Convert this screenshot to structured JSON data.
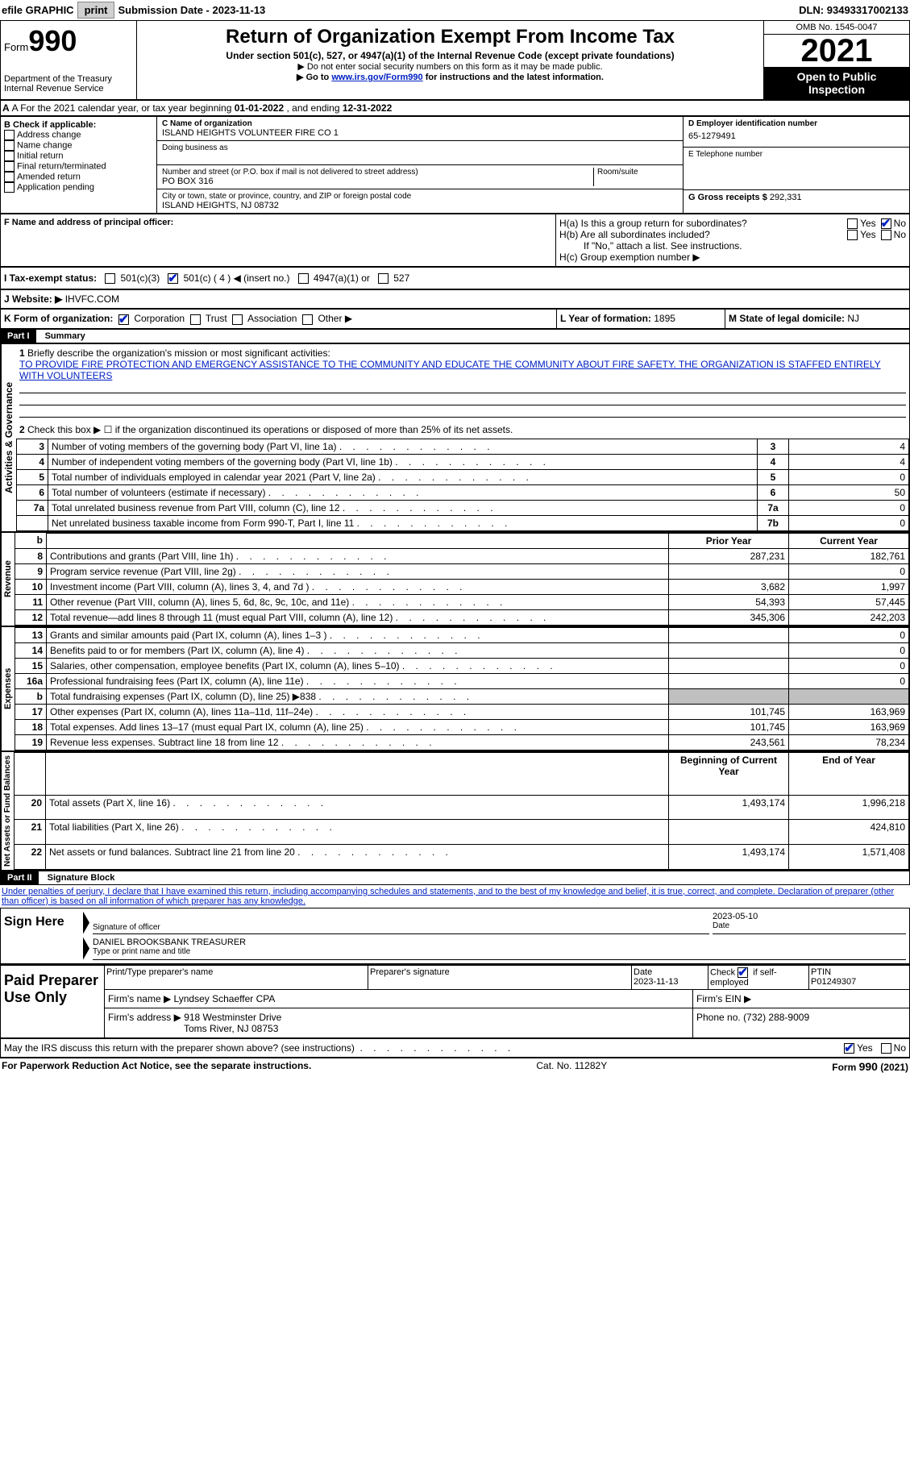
{
  "topbar": {
    "efile": "efile GRAPHIC",
    "print": "print",
    "sub_label": "Submission Date - ",
    "sub_date": "2023-11-13",
    "dln_label": "DLN: ",
    "dln": "93493317002133"
  },
  "header": {
    "form_word": "Form",
    "form_num": "990",
    "dept": "Department of the Treasury",
    "irs": "Internal Revenue Service",
    "title": "Return of Organization Exempt From Income Tax",
    "sub1": "Under section 501(c), 527, or 4947(a)(1) of the Internal Revenue Code (except private foundations)",
    "note1": "▶ Do not enter social security numbers on this form as it may be made public.",
    "note2_pre": "▶ Go to ",
    "note2_link": "www.irs.gov/Form990",
    "note2_post": " for instructions and the latest information.",
    "omb": "OMB No. 1545-0047",
    "year": "2021",
    "inspect1": "Open to Public",
    "inspect2": "Inspection"
  },
  "section_a": {
    "text_pre": "A For the 2021 calendar year, or tax year beginning ",
    "begin": "01-01-2022",
    "mid": "  , and ending ",
    "end": "12-31-2022"
  },
  "box_b": {
    "label": "B Check if applicable:",
    "opts": [
      "Address change",
      "Name change",
      "Initial return",
      "Final return/terminated",
      "Amended return",
      "Application pending"
    ]
  },
  "box_c": {
    "name_label": "C Name of organization",
    "name": "ISLAND HEIGHTS VOLUNTEER FIRE CO 1",
    "dba_label": "Doing business as",
    "addr_label": "Number and street (or P.O. box if mail is not delivered to street address)",
    "addr": "PO BOX 316",
    "room_label": "Room/suite",
    "city_label": "City or town, state or province, country, and ZIP or foreign postal code",
    "city": "ISLAND HEIGHTS, NJ  08732"
  },
  "box_d": {
    "ein_label": "D Employer identification number",
    "ein": "65-1279491",
    "phone_label": "E Telephone number",
    "gross_label": "G Gross receipts $ ",
    "gross": "292,331"
  },
  "box_f": {
    "label": "F Name and address of principal officer:"
  },
  "box_h": {
    "a_label": "H(a)  Is this a group return for subordinates?",
    "b_label": "H(b)  Are all subordinates included?",
    "b_note": "If \"No,\" attach a list. See instructions.",
    "c_label": "H(c)  Group exemption number ▶",
    "yes": "Yes",
    "no": "No"
  },
  "box_i": {
    "label": "I  Tax-exempt status:",
    "o1": "501(c)(3)",
    "o2": "501(c) ( 4 ) ◀ (insert no.)",
    "o3": "4947(a)(1) or",
    "o4": "527"
  },
  "box_j": {
    "label": "J  Website: ▶",
    "val": " IHVFC.COM"
  },
  "box_k": {
    "label": "K Form of organization:",
    "o1": "Corporation",
    "o2": "Trust",
    "o3": "Association",
    "o4": "Other ▶"
  },
  "box_l": {
    "label": "L Year of formation: ",
    "val": "1895"
  },
  "box_m": {
    "label": "M State of legal domicile: ",
    "val": "NJ"
  },
  "part1": {
    "header": "Part I",
    "title": "Summary",
    "l1_label": "Briefly describe the organization's mission or most significant activities:",
    "l1_text": "TO PROVIDE FIRE PROTECTION AND EMERGENCY ASSISTANCE TO THE COMMUNITY AND EDUCATE THE COMMUNITY ABOUT FIRE SAFETY. THE ORGANIZATION IS STAFFED ENTIRELY WITH VOLUNTEERS",
    "l2": "Check this box ▶ ☐ if the organization discontinued its operations or disposed of more than 25% of its net assets.",
    "rows_ag": [
      {
        "n": "3",
        "t": "Number of voting members of the governing body (Part VI, line 1a)",
        "b": "3",
        "v": "4"
      },
      {
        "n": "4",
        "t": "Number of independent voting members of the governing body (Part VI, line 1b)",
        "b": "4",
        "v": "4"
      },
      {
        "n": "5",
        "t": "Total number of individuals employed in calendar year 2021 (Part V, line 2a)",
        "b": "5",
        "v": "0"
      },
      {
        "n": "6",
        "t": "Total number of volunteers (estimate if necessary)",
        "b": "6",
        "v": "50"
      },
      {
        "n": "7a",
        "t": "Total unrelated business revenue from Part VIII, column (C), line 12",
        "b": "7a",
        "v": "0"
      },
      {
        "n": "",
        "t": "Net unrelated business taxable income from Form 990-T, Part I, line 11",
        "b": "7b",
        "v": "0"
      }
    ],
    "col_prior": "Prior Year",
    "col_current": "Current Year",
    "rows_rev": [
      {
        "n": "8",
        "t": "Contributions and grants (Part VIII, line 1h)",
        "p": "287,231",
        "c": "182,761"
      },
      {
        "n": "9",
        "t": "Program service revenue (Part VIII, line 2g)",
        "p": "",
        "c": "0"
      },
      {
        "n": "10",
        "t": "Investment income (Part VIII, column (A), lines 3, 4, and 7d )",
        "p": "3,682",
        "c": "1,997"
      },
      {
        "n": "11",
        "t": "Other revenue (Part VIII, column (A), lines 5, 6d, 8c, 9c, 10c, and 11e)",
        "p": "54,393",
        "c": "57,445"
      },
      {
        "n": "12",
        "t": "Total revenue—add lines 8 through 11 (must equal Part VIII, column (A), line 12)",
        "p": "345,306",
        "c": "242,203"
      }
    ],
    "rows_exp": [
      {
        "n": "13",
        "t": "Grants and similar amounts paid (Part IX, column (A), lines 1–3 )",
        "p": "",
        "c": "0"
      },
      {
        "n": "14",
        "t": "Benefits paid to or for members (Part IX, column (A), line 4)",
        "p": "",
        "c": "0"
      },
      {
        "n": "15",
        "t": "Salaries, other compensation, employee benefits (Part IX, column (A), lines 5–10)",
        "p": "",
        "c": "0"
      },
      {
        "n": "16a",
        "t": "Professional fundraising fees (Part IX, column (A), line 11e)",
        "p": "",
        "c": "0"
      },
      {
        "n": "b",
        "t": "Total fundraising expenses (Part IX, column (D), line 25) ▶838",
        "p": "shaded",
        "c": "shaded"
      },
      {
        "n": "17",
        "t": "Other expenses (Part IX, column (A), lines 11a–11d, 11f–24e)",
        "p": "101,745",
        "c": "163,969"
      },
      {
        "n": "18",
        "t": "Total expenses. Add lines 13–17 (must equal Part IX, column (A), line 25)",
        "p": "101,745",
        "c": "163,969"
      },
      {
        "n": "19",
        "t": "Revenue less expenses. Subtract line 18 from line 12",
        "p": "243,561",
        "c": "78,234"
      }
    ],
    "col_begin": "Beginning of Current Year",
    "col_end": "End of Year",
    "rows_net": [
      {
        "n": "20",
        "t": "Total assets (Part X, line 16)",
        "p": "1,493,174",
        "c": "1,996,218"
      },
      {
        "n": "21",
        "t": "Total liabilities (Part X, line 26)",
        "p": "",
        "c": "424,810"
      },
      {
        "n": "22",
        "t": "Net assets or fund balances. Subtract line 21 from line 20",
        "p": "1,493,174",
        "c": "1,571,408"
      }
    ],
    "vlabels": {
      "ag": "Activities & Governance",
      "rev": "Revenue",
      "exp": "Expenses",
      "net": "Net Assets or Fund Balances"
    }
  },
  "part2": {
    "header": "Part II",
    "title": "Signature Block",
    "perjury": "Under penalties of perjury, I declare that I have examined this return, including accompanying schedules and statements, and to the best of my knowledge and belief, it is true, correct, and complete. Declaration of preparer (other than officer) is based on all information of which preparer has any knowledge.",
    "sign_here": "Sign Here",
    "sig_officer": "Signature of officer",
    "sig_date": "2023-05-10",
    "date_label": "Date",
    "name_title": "DANIEL BROOKSBANK  TREASURER",
    "name_label": "Type or print name and title",
    "paid": "Paid Preparer Use Only",
    "prep_name_label": "Print/Type preparer's name",
    "prep_sig_label": "Preparer's signature",
    "prep_date_label": "Date",
    "prep_date": "2023-11-13",
    "check_self": "Check ☑ if self-employed",
    "ptin_label": "PTIN",
    "ptin": "P01249307",
    "firm_name_label": "Firm's name    ▶ ",
    "firm_name": "Lyndsey Schaeffer CPA",
    "firm_ein_label": "Firm's EIN ▶",
    "firm_addr_label": "Firm's address ▶ ",
    "firm_addr1": "918 Westminster Drive",
    "firm_addr2": "Toms River, NJ  08753",
    "firm_phone_label": "Phone no. ",
    "firm_phone": "(732) 288-9009",
    "discuss": "May the IRS discuss this return with the preparer shown above? (see instructions)",
    "yes": "Yes",
    "no": "No"
  },
  "footer": {
    "left": "For Paperwork Reduction Act Notice, see the separate instructions.",
    "mid": "Cat. No. 11282Y",
    "right": "Form 990 (2021)"
  }
}
